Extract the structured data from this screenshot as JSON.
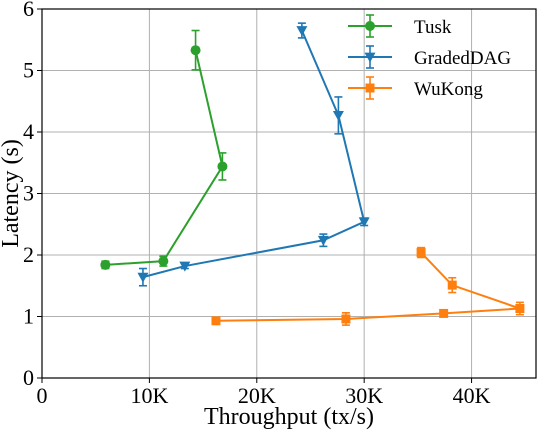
{
  "chart_data": {
    "type": "line",
    "xlabel": "Throughput (tx/s)",
    "ylabel": "Latency (s)",
    "xlim": [
      0,
      46000
    ],
    "ylim": [
      0,
      6
    ],
    "x_ticks": [
      0,
      10000,
      20000,
      30000,
      40000
    ],
    "x_tick_labels": [
      "0",
      "10K",
      "20K",
      "30K",
      "40K"
    ],
    "y_ticks": [
      0,
      1,
      2,
      3,
      4,
      5,
      6
    ],
    "y_tick_labels": [
      "0",
      "1",
      "2",
      "3",
      "4",
      "5",
      "6"
    ],
    "grid": true,
    "legend_position": "top-right",
    "series": [
      {
        "name": "Tusk",
        "color": "#2ca02c",
        "marker": "circle",
        "points": [
          {
            "x": 5900,
            "y": 1.84,
            "err": 0.06
          },
          {
            "x": 11300,
            "y": 1.9,
            "err": 0.08
          },
          {
            "x": 16800,
            "y": 3.44,
            "err": 0.22
          },
          {
            "x": 14300,
            "y": 5.33,
            "err": 0.32
          }
        ]
      },
      {
        "name": "GradedDAG",
        "color": "#1f77b4",
        "marker": "triangle-down",
        "points": [
          {
            "x": 9400,
            "y": 1.64,
            "err": 0.14
          },
          {
            "x": 13300,
            "y": 1.82,
            "err": 0.04
          },
          {
            "x": 26200,
            "y": 2.24,
            "err": 0.1
          },
          {
            "x": 30000,
            "y": 2.54,
            "err": 0.06
          },
          {
            "x": 27600,
            "y": 4.27,
            "err": 0.3
          },
          {
            "x": 24200,
            "y": 5.65,
            "err": 0.12
          }
        ]
      },
      {
        "name": "WuKong",
        "color": "#ff7f0e",
        "marker": "square",
        "points": [
          {
            "x": 16200,
            "y": 0.93,
            "err": 0.04
          },
          {
            "x": 28300,
            "y": 0.96,
            "err": 0.1
          },
          {
            "x": 37400,
            "y": 1.05,
            "err": 0.05
          },
          {
            "x": 44500,
            "y": 1.13,
            "err": 0.1
          },
          {
            "x": 38200,
            "y": 1.51,
            "err": 0.12
          },
          {
            "x": 35300,
            "y": 2.04,
            "err": 0.08
          }
        ]
      }
    ]
  }
}
